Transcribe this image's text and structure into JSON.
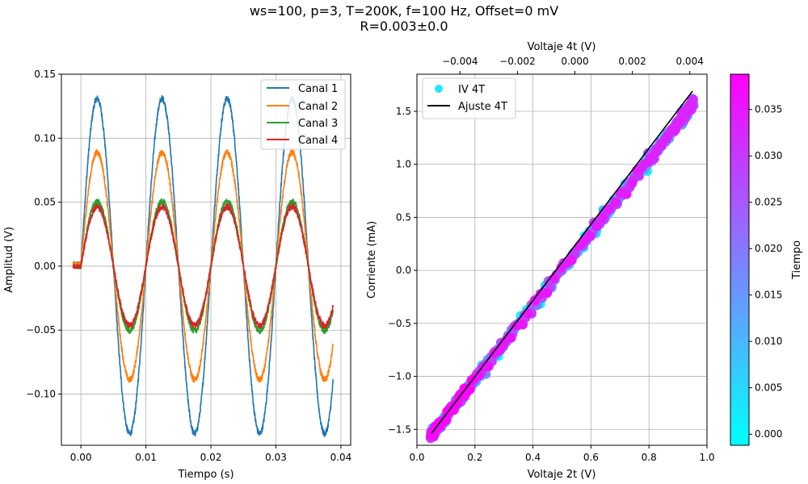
{
  "figure": {
    "title_line1": "ws=100, p=3, T=200K, f=100 Hz, Offset=0 mV",
    "title_line2": "R=0.003±0.0"
  },
  "colors": {
    "canal1": "#1f77b4",
    "canal2": "#ff7f0e",
    "canal3": "#2ca02c",
    "canal4": "#d62728",
    "fit": "#000000",
    "cmap_low": "#00ffff",
    "cmap_high": "#ff00ff",
    "legend_marker": "#22e6ff"
  },
  "chart_data": [
    {
      "type": "line",
      "title": "",
      "xlabel": "Tiempo (s)",
      "ylabel": "Amplitud (V)",
      "xlim": [
        -0.003,
        0.0415
      ],
      "ylim": [
        -0.14,
        0.15
      ],
      "xticks": [
        0.0,
        0.01,
        0.02,
        0.03,
        0.04
      ],
      "xtick_labels": [
        "0.00",
        "0.01",
        "0.02",
        "0.03",
        "0.04"
      ],
      "yticks": [
        -0.1,
        -0.05,
        0.0,
        0.05,
        0.1,
        0.15
      ],
      "ytick_labels": [
        "−0.10",
        "−0.05",
        "0.00",
        "0.05",
        "0.10",
        "0.15"
      ],
      "grid": true,
      "legend_position": "top-right",
      "signal": {
        "frequency_hz": 100,
        "t_start": -0.0012,
        "t_end": 0.0388,
        "noise_band": 0.003
      },
      "series": [
        {
          "name": "Canal 1",
          "amplitude": 0.131,
          "offset": 0.004
        },
        {
          "name": "Canal 2",
          "amplitude": 0.089,
          "offset": 0.0035
        },
        {
          "name": "Canal 3",
          "amplitude": 0.0505,
          "offset": -0.001
        },
        {
          "name": "Canal 4",
          "amplitude": 0.0465,
          "offset": -0.0005
        }
      ]
    },
    {
      "type": "scatter",
      "title": "",
      "xlabel": "Voltaje 2t (V)",
      "ylabel": "Corriente (mA)",
      "top_xlabel": "Voltaje 4t (V)",
      "xlim": [
        0.0,
        1.0
      ],
      "ylim": [
        -1.65,
        1.85
      ],
      "top_xlim": [
        -0.0055,
        0.0046
      ],
      "xticks": [
        0.0,
        0.2,
        0.4,
        0.6,
        0.8,
        1.0
      ],
      "xtick_labels": [
        "0.0",
        "0.2",
        "0.4",
        "0.6",
        "0.8",
        "1.0"
      ],
      "yticks": [
        -1.5,
        -1.0,
        -0.5,
        0.0,
        0.5,
        1.0,
        1.5
      ],
      "ytick_labels": [
        "−1.5",
        "−1.0",
        "−0.5",
        "0.0",
        "0.5",
        "1.0",
        "1.5"
      ],
      "top_xticks": [
        -0.004,
        -0.002,
        0.0,
        0.002,
        0.004
      ],
      "top_xtick_labels": [
        "−0.004",
        "−0.002",
        "0.000",
        "0.002",
        "0.004"
      ],
      "grid": true,
      "legend_position": "top-left",
      "legend": [
        "IV 4T",
        "Ajuste 4T"
      ],
      "scatter": {
        "x_range": [
          0.05,
          0.95
        ],
        "slope": 3.45,
        "intercept": -1.72,
        "spread": 0.11
      },
      "fit_line": {
        "x": [
          0.05,
          0.95
        ],
        "y": [
          -1.54,
          1.69
        ]
      },
      "colorbar": {
        "label": "Tiempo",
        "range": [
          -0.0012,
          0.0388
        ],
        "ticks": [
          0.0,
          0.005,
          0.01,
          0.015,
          0.02,
          0.025,
          0.03,
          0.035
        ],
        "tick_labels": [
          "0.000",
          "0.005",
          "0.010",
          "0.015",
          "0.020",
          "0.025",
          "0.030",
          "0.035"
        ]
      }
    }
  ]
}
